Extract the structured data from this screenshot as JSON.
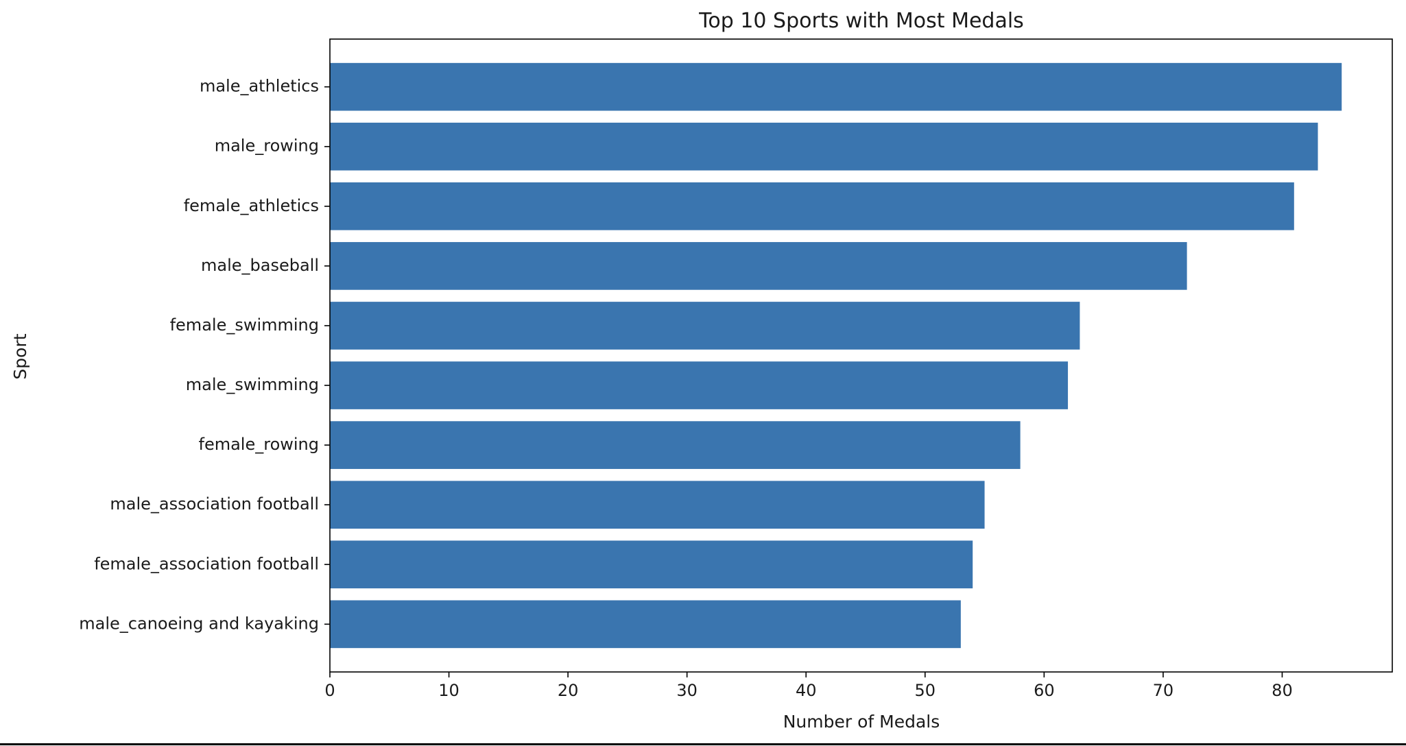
{
  "chart_data": {
    "type": "bar",
    "orientation": "horizontal",
    "title": "Top 10 Sports with Most Medals",
    "xlabel": "Number of Medals",
    "ylabel": "Sport",
    "categories": [
      "male_athletics",
      "male_rowing",
      "female_athletics",
      "male_baseball",
      "female_swimming",
      "male_swimming",
      "female_rowing",
      "male_association football",
      "female_association football",
      "male_canoeing and kayaking"
    ],
    "values": [
      85,
      83,
      81,
      72,
      63,
      62,
      58,
      55,
      54,
      53
    ],
    "xlim": [
      0,
      89.25
    ],
    "xticks": [
      0,
      10,
      20,
      30,
      40,
      50,
      60,
      70,
      80
    ],
    "grid": false,
    "bar_color": "#3a75af"
  }
}
